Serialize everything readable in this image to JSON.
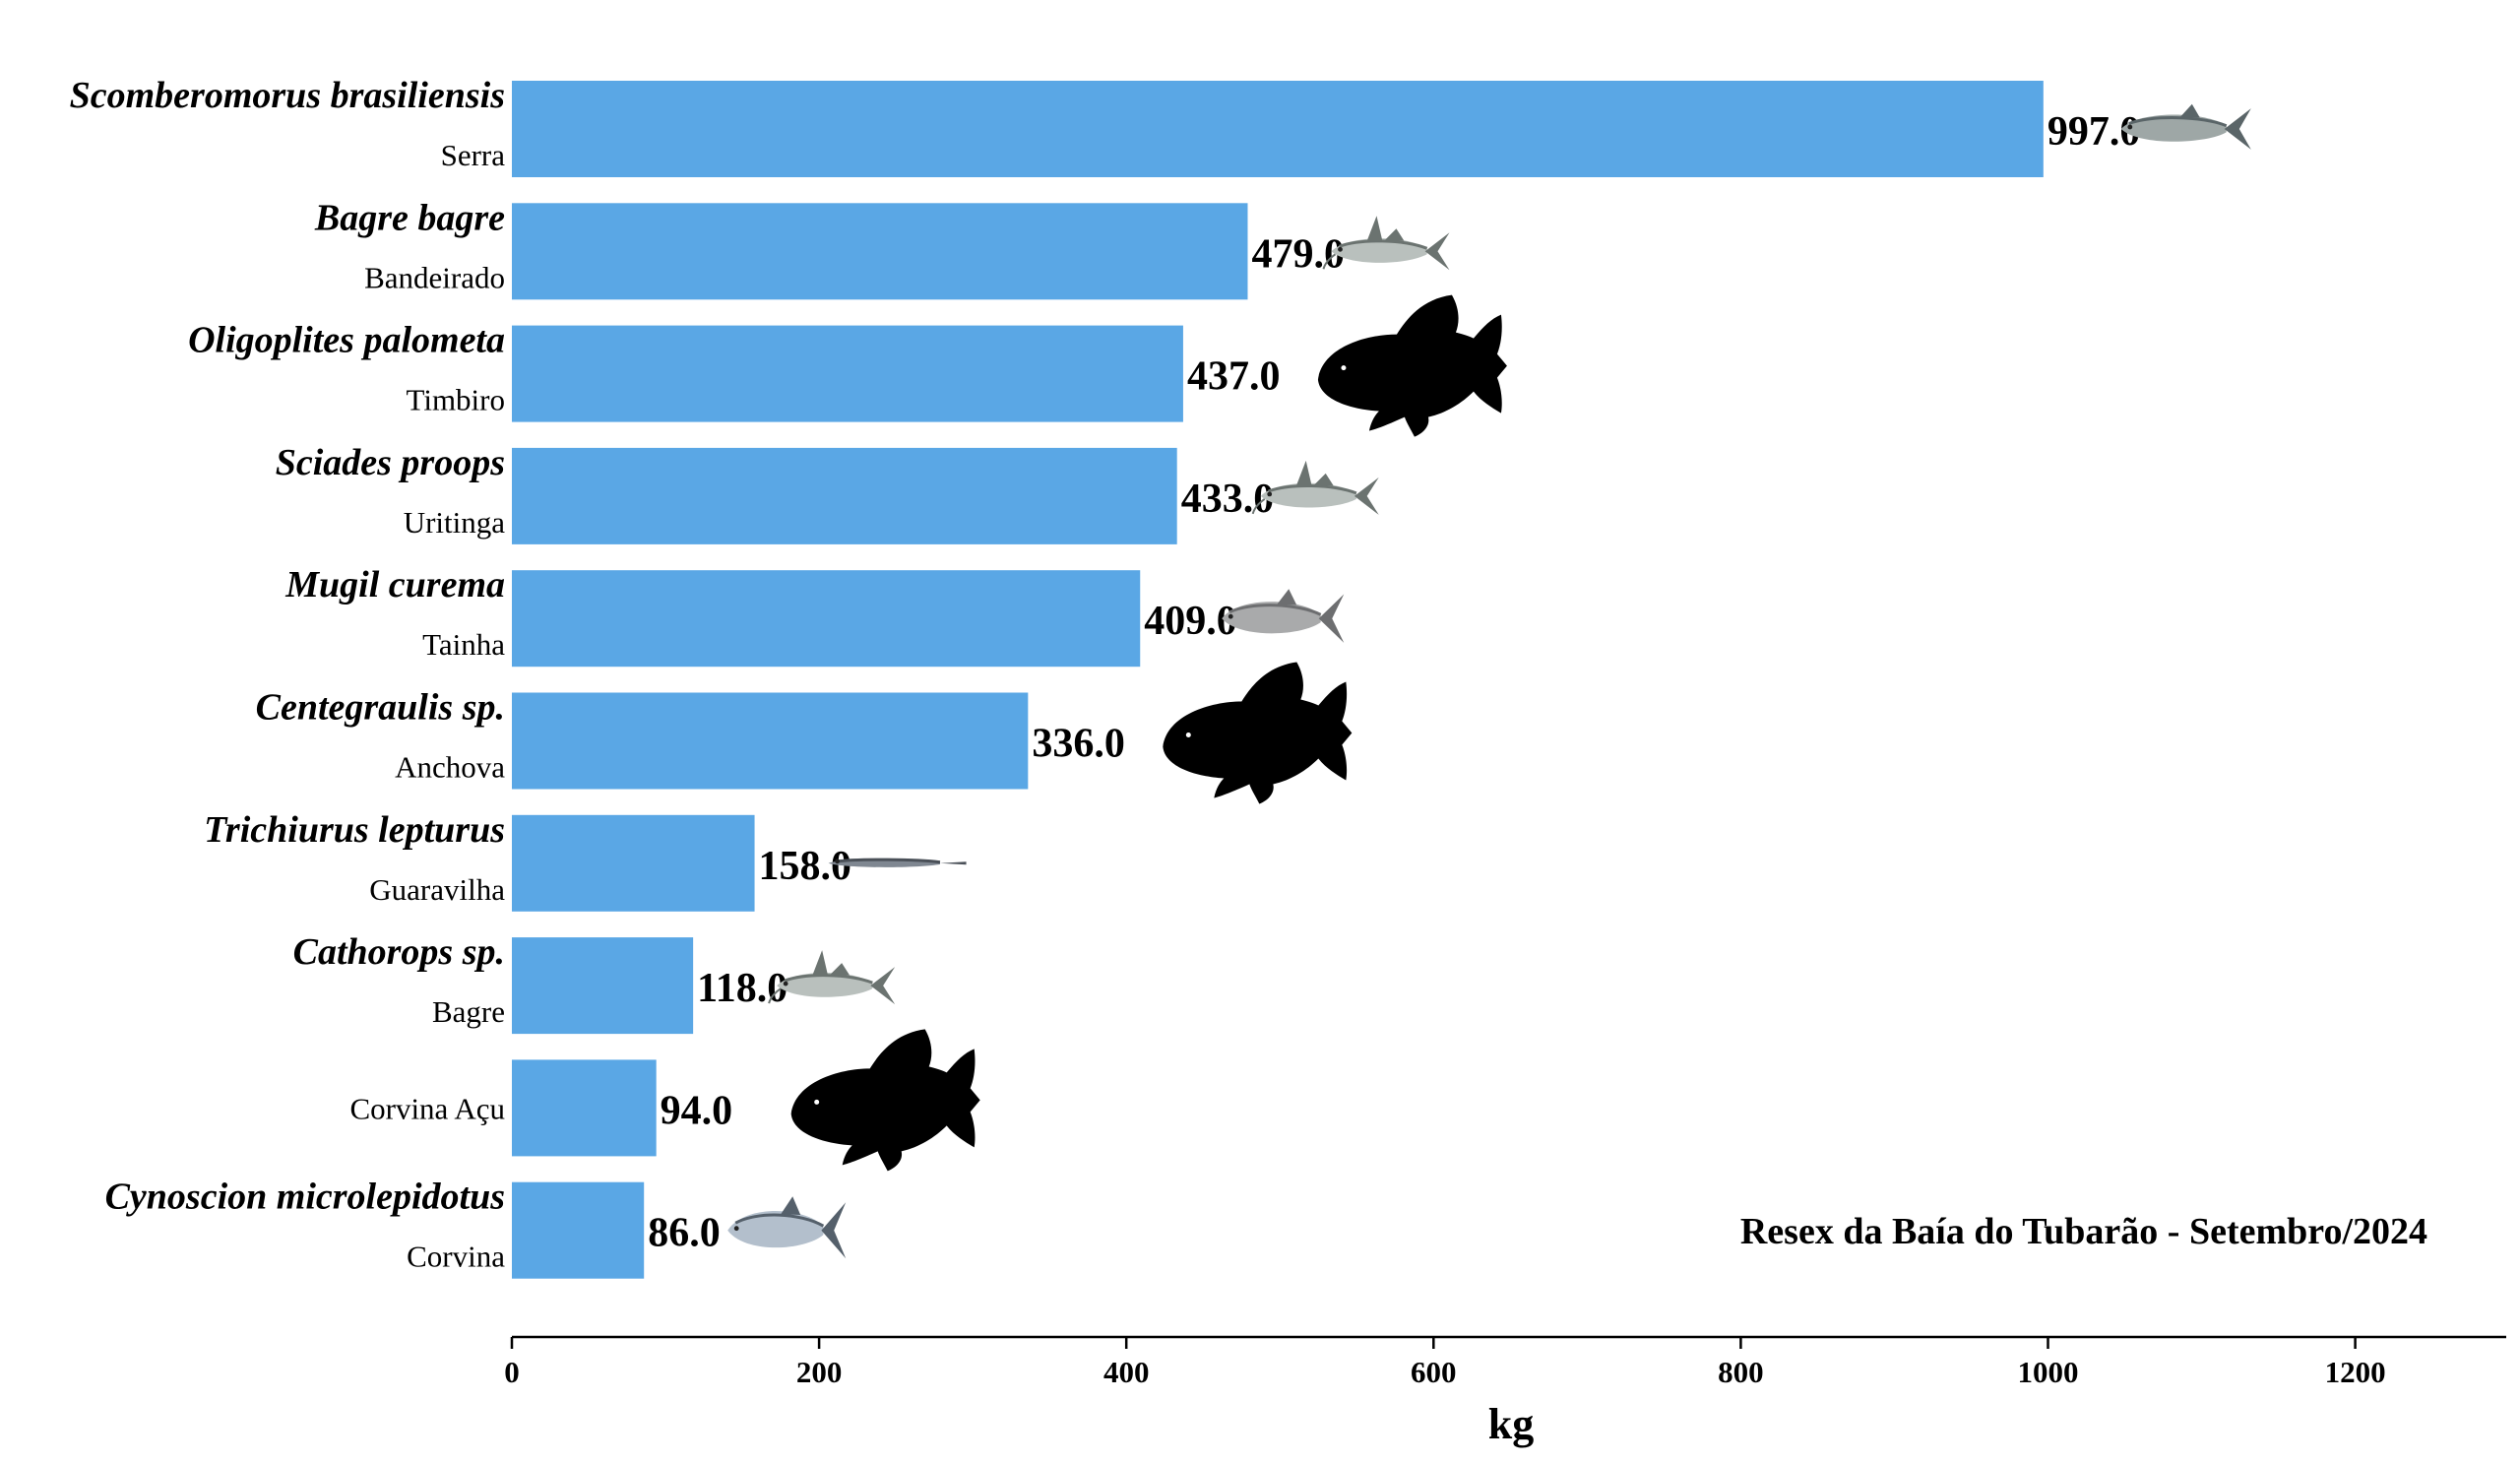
{
  "chart_data": {
    "type": "bar",
    "orientation": "horizontal",
    "xlabel": "kg",
    "xlim": [
      0,
      1300
    ],
    "xticks": [
      0,
      200,
      400,
      600,
      800,
      1000,
      1200
    ],
    "annotation": "Resex da Baía do Tubarão - Setembro/2024",
    "bar_color": "#5aa7e5",
    "value_format": "one-decimal",
    "categories": [
      {
        "scientific": "Scomberomorus brasiliensis",
        "common": "Serra",
        "value": 997.0,
        "value_label": "997.0",
        "icon": "mackerel-photo-icon"
      },
      {
        "scientific": "Bagre bagre",
        "common": "Bandeirado",
        "value": 479.0,
        "value_label": "479.0",
        "icon": "catfish-photo-icon"
      },
      {
        "scientific": "Oligoplites palometa",
        "common": "Timbiro",
        "value": 437.0,
        "value_label": "437.0",
        "icon": "fish-silhouette-icon"
      },
      {
        "scientific": "Sciades proops",
        "common": "Uritinga",
        "value": 433.0,
        "value_label": "433.0",
        "icon": "catfish-photo-icon"
      },
      {
        "scientific": "Mugil curema",
        "common": "Tainha",
        "value": 409.0,
        "value_label": "409.0",
        "icon": "mullet-photo-icon"
      },
      {
        "scientific": "Centegraulis sp.",
        "common": "Anchova",
        "value": 336.0,
        "value_label": "336.0",
        "icon": "fish-silhouette-icon"
      },
      {
        "scientific": "Trichiurus lepturus",
        "common": "Guaravilha",
        "value": 158.0,
        "value_label": "158.0",
        "icon": "cutlassfish-photo-icon"
      },
      {
        "scientific": "Cathorops sp.",
        "common": "Bagre",
        "value": 118.0,
        "value_label": "118.0",
        "icon": "catfish-photo-icon"
      },
      {
        "scientific": "",
        "common": "Corvina Açu",
        "value": 94.0,
        "value_label": "94.0",
        "icon": "fish-silhouette-icon"
      },
      {
        "scientific": "Cynoscion microlepidotus",
        "common": "Corvina",
        "value": 86.0,
        "value_label": "86.0",
        "icon": "croaker-photo-icon"
      }
    ]
  }
}
